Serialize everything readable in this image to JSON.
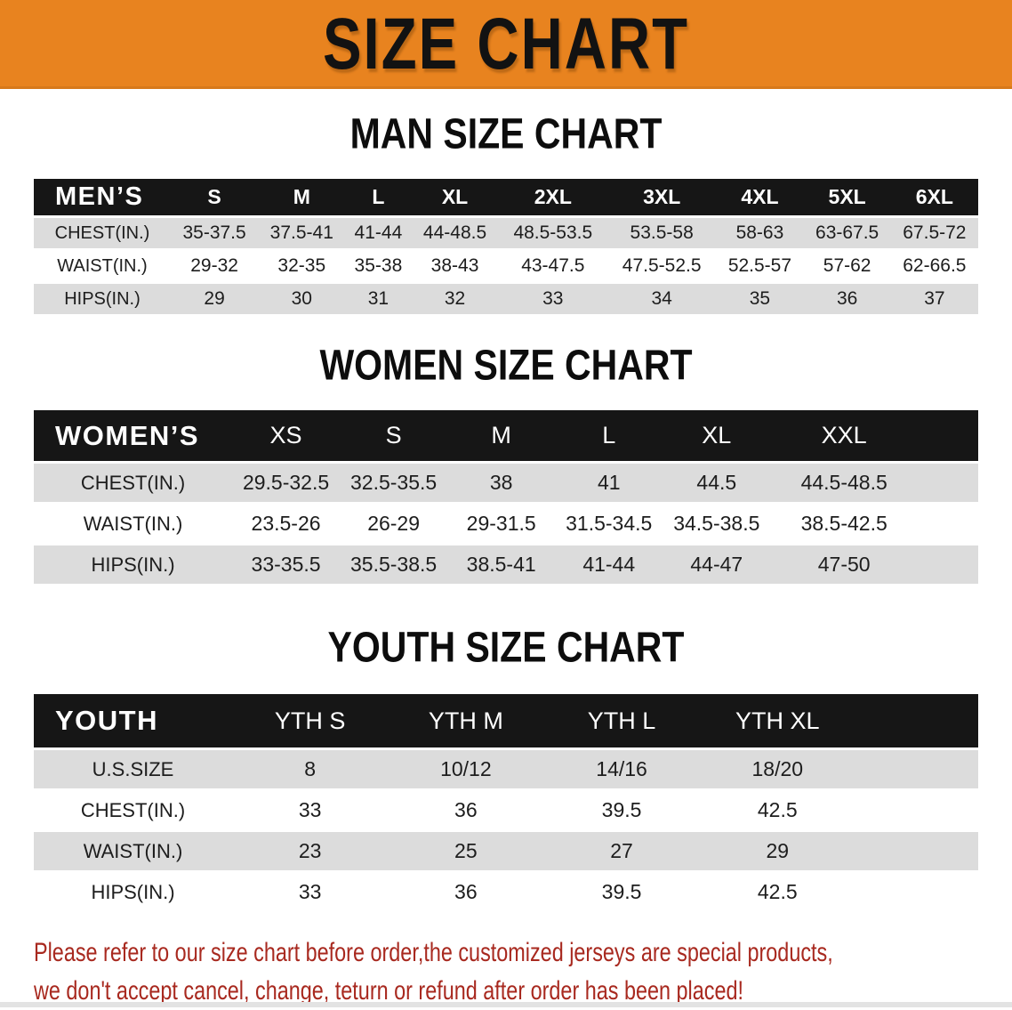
{
  "banner": {
    "title": "SIZE CHART"
  },
  "colors": {
    "banner_bg": "#E8831F",
    "table_header_bg": "#161616",
    "row_alt_bg": "#DCDCDC",
    "disclaimer_text": "#A8291F"
  },
  "sections": [
    {
      "heading": "MAN SIZE CHART",
      "table": {
        "header": [
          "MEN’S",
          "S",
          "M",
          "L",
          "XL",
          "2XL",
          "3XL",
          "4XL",
          "5XL",
          "6XL"
        ],
        "rows": [
          {
            "label": "CHEST(IN.)",
            "values": [
              "35-37.5",
              "37.5-41",
              "41-44",
              "44-48.5",
              "48.5-53.5",
              "53.5-58",
              "58-63",
              "63-67.5",
              "67.5-72"
            ]
          },
          {
            "label": "WAIST(IN.)",
            "values": [
              "29-32",
              "32-35",
              "35-38",
              "38-43",
              "43-47.5",
              "47.5-52.5",
              "52.5-57",
              "57-62",
              "62-66.5"
            ]
          },
          {
            "label": "HIPS(IN.)",
            "values": [
              "29",
              "30",
              "31",
              "32",
              "33",
              "34",
              "35",
              "36",
              "37"
            ]
          }
        ]
      }
    },
    {
      "heading": "WOMEN SIZE CHART",
      "table": {
        "header": [
          "WOMEN’S",
          "XS",
          "S",
          "M",
          "L",
          "XL",
          "XXL"
        ],
        "rows": [
          {
            "label": "CHEST(IN.)",
            "values": [
              "29.5-32.5",
              "32.5-35.5",
              "38",
              "41",
              "44.5",
              "44.5-48.5"
            ]
          },
          {
            "label": "WAIST(IN.)",
            "values": [
              "23.5-26",
              "26-29",
              "29-31.5",
              "31.5-34.5",
              "34.5-38.5",
              "38.5-42.5"
            ]
          },
          {
            "label": "HIPS(IN.)",
            "values": [
              "33-35.5",
              "35.5-38.5",
              "38.5-41",
              "41-44",
              "44-47",
              "47-50"
            ]
          }
        ]
      }
    },
    {
      "heading": "YOUTH SIZE CHART",
      "table": {
        "header": [
          "YOUTH",
          "YTH S",
          "YTH M",
          "YTH L",
          "YTH XL"
        ],
        "rows": [
          {
            "label": "U.S.SIZE",
            "values": [
              "8",
              "10/12",
              "14/16",
              "18/20"
            ]
          },
          {
            "label": "CHEST(IN.)",
            "values": [
              "33",
              "36",
              "39.5",
              "42.5"
            ]
          },
          {
            "label": "WAIST(IN.)",
            "values": [
              "23",
              "25",
              "27",
              "29"
            ]
          },
          {
            "label": "HIPS(IN.)",
            "values": [
              "33",
              "36",
              "39.5",
              "42.5"
            ]
          }
        ]
      }
    }
  ],
  "disclaimer": {
    "line1": "Please refer to our size chart before order,the customized jerseys are special products,",
    "line2": "we don't accept cancel, change, teturn or refund after order has been placed!"
  }
}
